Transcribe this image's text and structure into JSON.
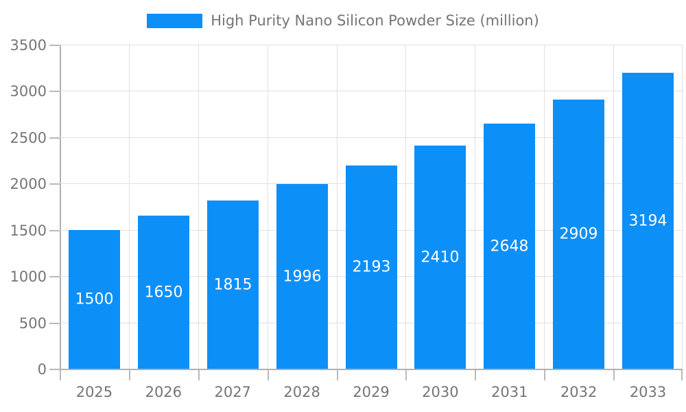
{
  "legend": {
    "label": "High Purity Nano Silicon Powder Size (million)"
  },
  "colors": {
    "bar": "#0d8ff8",
    "grid": "#e0e0e0",
    "axis_line": "#b0b0b0",
    "axis_text": "#757575",
    "value_text": "#ffffff",
    "background": "#ffffff"
  },
  "chart_data": {
    "type": "bar",
    "title": "High Purity Nano Silicon Powder Size (million)",
    "categories": [
      "2025",
      "2026",
      "2027",
      "2028",
      "2029",
      "2030",
      "2031",
      "2032",
      "2033"
    ],
    "values": [
      1500,
      1650,
      1815,
      1996,
      2193,
      2410,
      2648,
      2909,
      3194
    ],
    "xlabel": "",
    "ylabel": "",
    "ylim": [
      0,
      3500
    ],
    "yticks": [
      0,
      500,
      1000,
      1500,
      2000,
      2500,
      3000,
      3500
    ],
    "grid": true,
    "legend_position": "top-center",
    "value_labels_position": "inside-center",
    "bar_color": "#0d8ff8"
  }
}
